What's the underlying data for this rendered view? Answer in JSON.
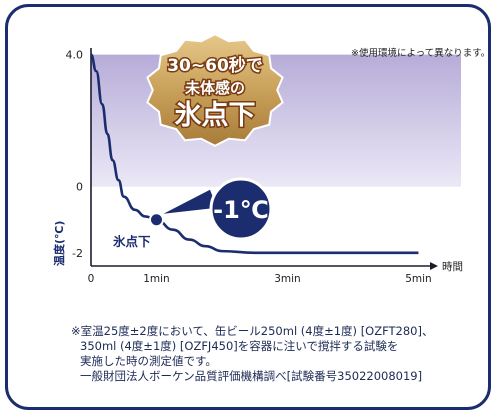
{
  "usage_note": "※使用環境によって異なります。",
  "badge": {
    "line1": "30~60秒で",
    "line2": "未体感の",
    "line3": "氷点下"
  },
  "callout": "-1℃",
  "zone_label": "氷点下",
  "footnote": {
    "line1": "※室温25度±2度において、缶ビール250ml (4度±1度) [OZFT280]、",
    "line2": "350ml (4度±1度) [OZFJ450]を容器に注いで撹拌する試験を",
    "line3": "実施した時の測定値です。",
    "line4": "一般財団法人ボーケン品質評価機構調べ[試験番号35022008019]"
  },
  "colors": {
    "curve": "#1b2d6e",
    "band_top": "#b7acd8",
    "band_bottom": "#ebe8f6",
    "frame": "#1b2d6e",
    "badge_gold": "#c9a15a",
    "badge_brown": "#7a3b12"
  },
  "chart_data": {
    "type": "line",
    "title": "",
    "xlabel": "時間",
    "ylabel": "温度(℃)",
    "x_tick_labels": [
      "0",
      "1min",
      "3min",
      "5min"
    ],
    "x_ticks_minutes": [
      0,
      1,
      3,
      5
    ],
    "y_tick_labels": [
      "4.0",
      "0",
      "-2"
    ],
    "y_ticks": [
      4.0,
      0,
      -2
    ],
    "xlim": [
      0,
      5.1
    ],
    "ylim": [
      -2.4,
      4.2
    ],
    "shaded_band": [
      0,
      4.0
    ],
    "series": [
      {
        "x": [
          0,
          0.08,
          0.17,
          0.25,
          0.33,
          0.42,
          0.5,
          0.67,
          0.83,
          1.0,
          1.25,
          1.5,
          1.75,
          2.0,
          2.5,
          3.0,
          4.0,
          5.0
        ],
        "values": [
          4.0,
          3.5,
          2.5,
          1.6,
          0.8,
          0.2,
          -0.3,
          -0.7,
          -0.9,
          -1.0,
          -1.3,
          -1.6,
          -1.8,
          -1.95,
          -2.0,
          -2.0,
          -2.0,
          -2.0
        ]
      }
    ],
    "annotations": [
      {
        "x": 1.0,
        "y": -1.0,
        "text": "-1℃"
      }
    ]
  }
}
